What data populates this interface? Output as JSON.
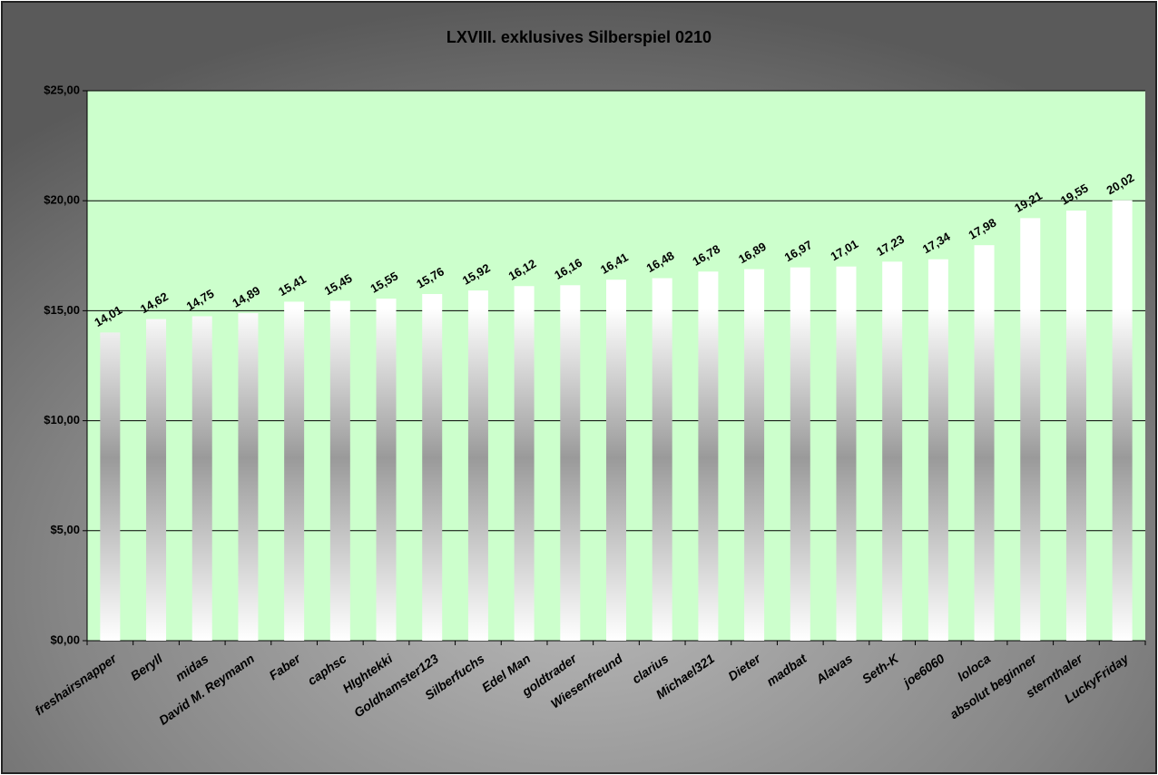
{
  "chart_data": {
    "type": "bar",
    "title": "LXVIII. exklusives Silberspiel 0210",
    "categories": [
      "freshairsnapper",
      "Beryll",
      "midas",
      "David M. Reymann",
      "Faber",
      "caphsc",
      "HIghtekki",
      "Goldhamster123",
      "Silberfuchs",
      "Edel Man",
      "goldtrader",
      "Wiesenfreund",
      "clarius",
      "Michael321",
      "Dieter",
      "madbat",
      "Alavas",
      "Seth-K",
      "joe6060",
      "loloca",
      "absolut beginner",
      "sternthaler",
      "LuckyFriday"
    ],
    "values": [
      14.01,
      14.62,
      14.75,
      14.89,
      15.41,
      15.45,
      15.55,
      15.76,
      15.92,
      16.12,
      16.16,
      16.41,
      16.48,
      16.78,
      16.89,
      16.97,
      17.01,
      17.23,
      17.34,
      17.98,
      19.21,
      19.55,
      20.02
    ],
    "value_labels": [
      "14,01",
      "14,62",
      "14,75",
      "14,89",
      "15,41",
      "15,45",
      "15,55",
      "15,76",
      "15,92",
      "16,12",
      "16,16",
      "16,41",
      "16,48",
      "16,78",
      "16,89",
      "16,97",
      "17,01",
      "17,23",
      "17,34",
      "17,98",
      "19,21",
      "19,55",
      "20,02"
    ],
    "ylim": [
      0,
      25
    ],
    "yticks": [
      {
        "value": 0,
        "label": "$0,00"
      },
      {
        "value": 5,
        "label": "$5,00"
      },
      {
        "value": 10,
        "label": "$10,00"
      },
      {
        "value": 15,
        "label": "$15,00"
      },
      {
        "value": 20,
        "label": "$20,00"
      },
      {
        "value": 25,
        "label": "$25,00"
      }
    ],
    "grid": true,
    "color": "#ffffff"
  }
}
